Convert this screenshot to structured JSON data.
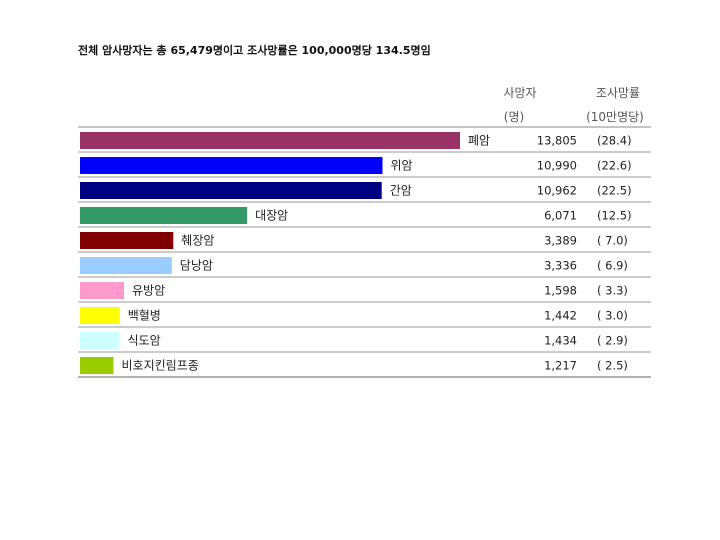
{
  "title": "전체 암사망자는 총 65,479명이고 조사망률은 100,000명당 134.5명임",
  "headers": {
    "deaths": "사망자",
    "deaths_unit": "(명)",
    "rate": "조사망률",
    "rate_unit": "(10만명당)"
  },
  "chart_data": {
    "type": "bar",
    "orientation": "horizontal",
    "title": "전체 암사망자는 총 65,479명이고 조사망률은 100,000명당 134.5명임",
    "categories": [
      "폐암",
      "위암",
      "간암",
      "대장암",
      "췌장암",
      "담낭암",
      "유방암",
      "백혈병",
      "식도암",
      "비호지킨림프종"
    ],
    "values": [
      13805,
      10990,
      10962,
      6071,
      3389,
      3336,
      1598,
      1442,
      1434,
      1217
    ],
    "value_labels": [
      "13,805",
      "10,990",
      "10,962",
      "6,071",
      "3,389",
      "3,336",
      "1,598",
      "1,442",
      "1,434",
      "1,217"
    ],
    "rate_labels": [
      "(28.4)",
      "(22.6)",
      "(22.5)",
      "(12.5)",
      "( 7.0)",
      "( 6.9)",
      "( 3.3)",
      "( 3.0)",
      "( 2.9)",
      "( 2.5)"
    ],
    "rates": [
      28.4,
      22.6,
      22.5,
      12.5,
      7.0,
      6.9,
      3.3,
      3.0,
      2.9,
      2.5
    ],
    "colors": [
      "#993366",
      "#0000ff",
      "#000080",
      "#339966",
      "#800000",
      "#99ccff",
      "#ff99cc",
      "#ffff00",
      "#ccffff",
      "#99cc00"
    ],
    "grid": false
  }
}
